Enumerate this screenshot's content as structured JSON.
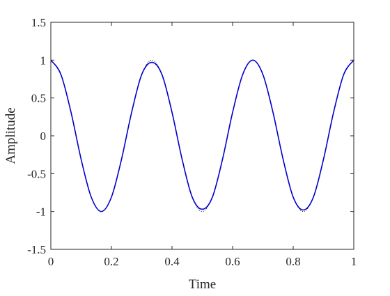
{
  "chart_data": {
    "type": "line",
    "title": "",
    "xlabel": "Time",
    "ylabel": "Amplitude",
    "xlim": [
      0,
      1
    ],
    "ylim": [
      -1.5,
      1.5
    ],
    "x_ticks": [
      0,
      0.2,
      0.4,
      0.6,
      0.8,
      1
    ],
    "x_tick_labels": [
      "0",
      "0.2",
      "0.4",
      "0.6",
      "0.8",
      "1"
    ],
    "y_ticks": [
      -1.5,
      -1,
      -0.5,
      0,
      0.5,
      1,
      1.5
    ],
    "y_tick_labels": [
      "-1.5",
      "-1",
      "-0.5",
      "0",
      "0.5",
      "1",
      "1.5"
    ],
    "grid": false,
    "series": [
      {
        "color": "#0000cc",
        "style": "line",
        "x": [
          0,
          0.0333,
          0.0667,
          0.1,
          0.1333,
          0.1667,
          0.2,
          0.2333,
          0.2667,
          0.3,
          0.3333,
          0.3667,
          0.4,
          0.4333,
          0.4667,
          0.5,
          0.5333,
          0.5667,
          0.6,
          0.6333,
          0.6667,
          0.7,
          0.7333,
          0.7667,
          0.8,
          0.8333,
          0.8667,
          0.9,
          0.9333,
          0.9667,
          1
        ],
        "y": [
          1.0,
          0.81,
          0.31,
          -0.31,
          -0.81,
          -1.0,
          -0.81,
          -0.31,
          0.31,
          0.81,
          0.97,
          0.81,
          0.31,
          -0.31,
          -0.81,
          -0.97,
          -0.81,
          -0.31,
          0.31,
          0.81,
          1.0,
          0.81,
          0.31,
          -0.31,
          -0.81,
          -0.98,
          -0.81,
          -0.31,
          0.31,
          0.81,
          1.0
        ]
      },
      {
        "color": "#000000",
        "style": "dotted",
        "x": [
          0,
          0.0333,
          0.0667,
          0.1,
          0.1333,
          0.1667,
          0.2,
          0.2333,
          0.2667,
          0.3,
          0.3333,
          0.3667,
          0.4,
          0.4333,
          0.4667,
          0.5,
          0.5333,
          0.5667,
          0.6,
          0.6333,
          0.6667,
          0.7,
          0.7333,
          0.7667,
          0.8,
          0.8333,
          0.8667,
          0.9,
          0.9333,
          0.9667,
          1
        ],
        "y": [
          1.0,
          0.81,
          0.31,
          -0.31,
          -0.81,
          -1.0,
          -0.81,
          -0.31,
          0.31,
          0.81,
          1.0,
          0.81,
          0.31,
          -0.31,
          -0.81,
          -1.0,
          -0.81,
          -0.31,
          0.31,
          0.81,
          1.0,
          0.81,
          0.31,
          -0.31,
          -0.81,
          -1.0,
          -0.81,
          -0.31,
          0.31,
          0.81,
          1.0
        ]
      }
    ]
  }
}
